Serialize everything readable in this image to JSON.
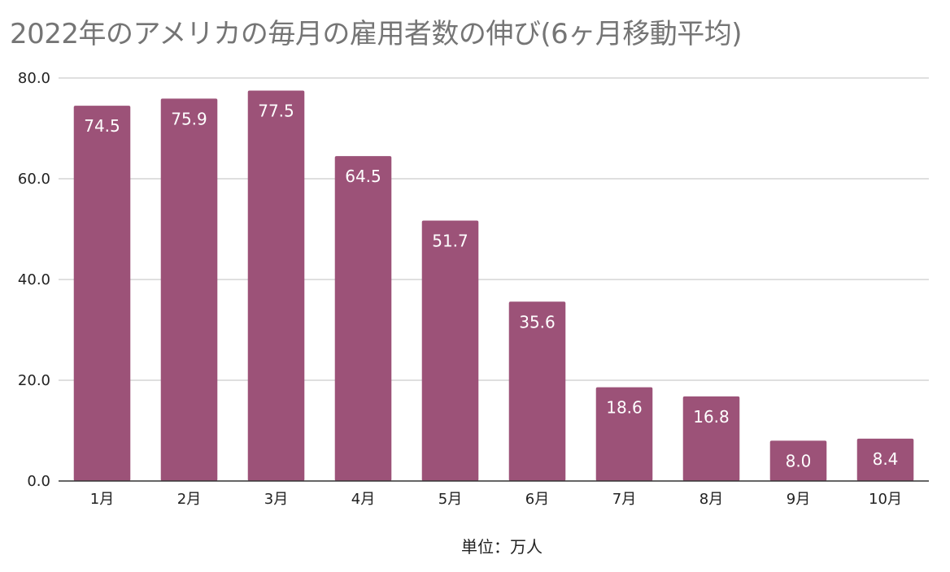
{
  "chart_data": {
    "type": "bar",
    "title": "2022年のアメリカの毎月の雇用者数の伸び(6ヶ月移動平均)",
    "xlabel": "単位：万人",
    "ylabel": "",
    "categories": [
      "1月",
      "2月",
      "3月",
      "4月",
      "5月",
      "6月",
      "7月",
      "8月",
      "9月",
      "10月"
    ],
    "values": [
      74.5,
      75.9,
      77.5,
      64.5,
      51.7,
      35.6,
      18.6,
      16.8,
      8.0,
      8.4
    ],
    "ylim": [
      0,
      80
    ],
    "yticks": [
      "0.0",
      "20.0",
      "40.0",
      "60.0",
      "80.0"
    ],
    "grid": true,
    "bar_color": "#9c5278",
    "gridline_color": "#cccccc",
    "axis_color": "#333333"
  }
}
